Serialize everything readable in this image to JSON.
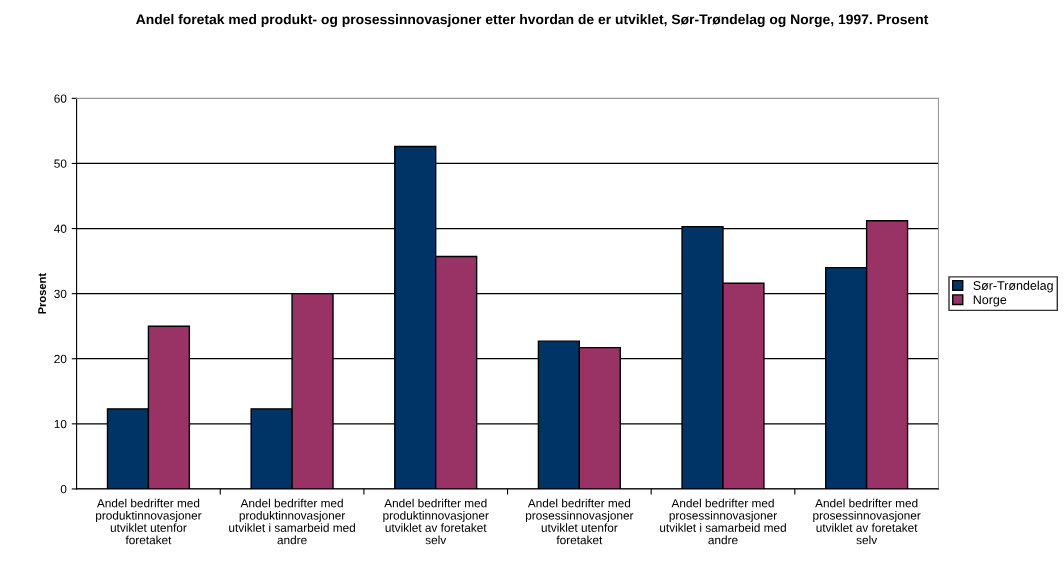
{
  "chart_data": {
    "type": "bar",
    "title": "Andel foretak med produkt- og prosessinnovasjoner etter hvordan de er utviklet, Sør-Trøndelag og Norge, 1997. Prosent",
    "ylabel": "Prosent",
    "categories": [
      "Andel bedrifter med produktinnovasjoner utviklet utenfor foretaket",
      "Andel bedrifter med produktinnovasjoner utviklet i samarbeid med andre",
      "Andel bedrifter med produktinnovasjoner utviklet av foretaket selv",
      "Andel bedrifter med prosessinnovasjoner utviklet utenfor foretaket",
      "Andel bedrifter med prosessinnovasjoner utviklet i samarbeid med andre",
      "Andel bedrifter med prosessinnovasjoner utviklet av foretaket selv"
    ],
    "series": [
      {
        "name": "Sør-Trøndelag",
        "color": "#003366",
        "values": [
          12.3,
          12.3,
          52.6,
          22.7,
          40.3,
          34.0
        ]
      },
      {
        "name": "Norge",
        "color": "#993366",
        "values": [
          25.0,
          30.0,
          35.7,
          21.7,
          31.6,
          41.2
        ]
      }
    ],
    "ylim": [
      0,
      60
    ],
    "yticks": [
      0,
      10,
      20,
      30,
      40,
      50,
      60
    ],
    "grid": "y",
    "legend": "right"
  }
}
